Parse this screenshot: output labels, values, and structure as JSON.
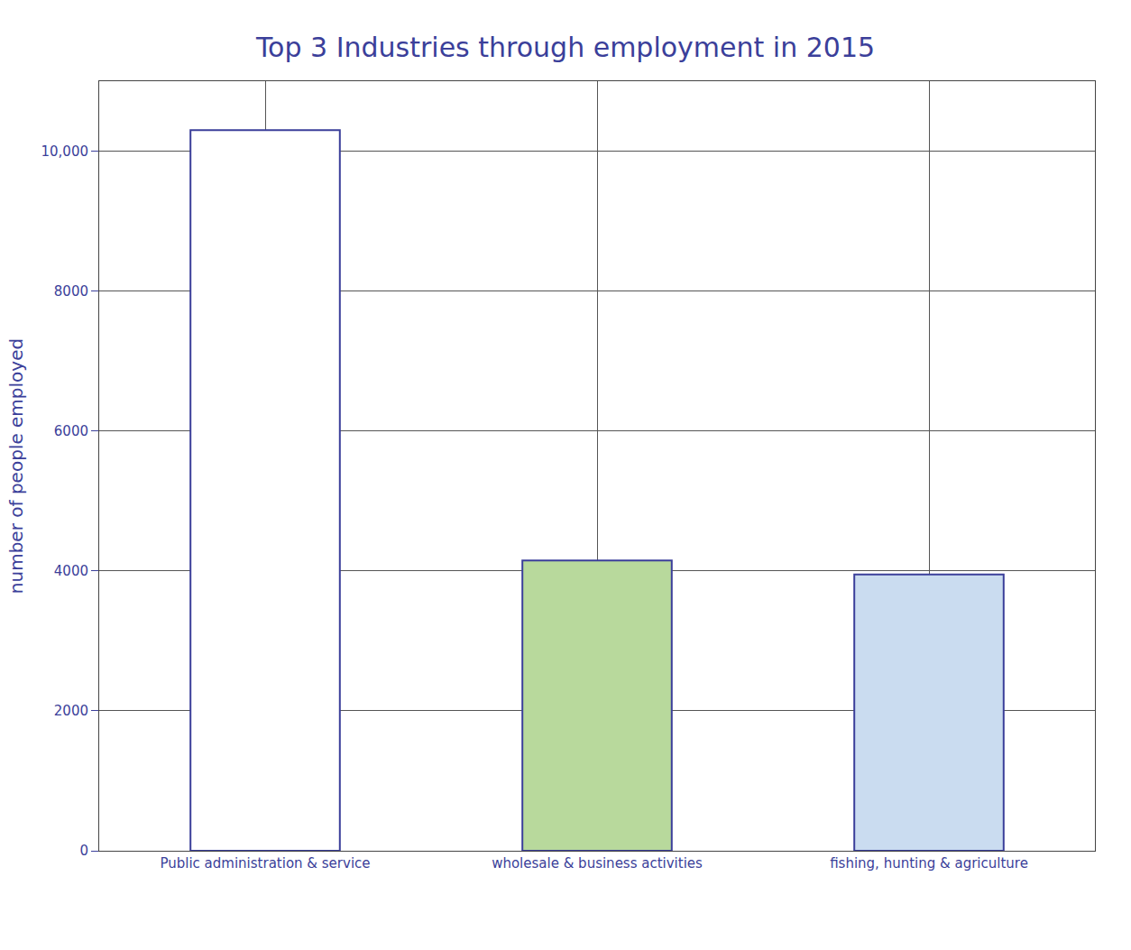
{
  "chart_data": {
    "type": "bar",
    "title": "Top 3 Industries through employment in 2015",
    "y_label": "number of people employed",
    "categories": [
      "Public administration & service",
      "wholesale & business activities",
      "fishing, hunting & agriculture"
    ],
    "values": [
      10300,
      4150,
      3950
    ],
    "colors": [
      "#ffffff",
      "#b8d99c",
      "#cadcf0"
    ],
    "ylim": [
      0,
      11000
    ],
    "yticks": [
      0,
      2000,
      4000,
      6000,
      8000,
      {
        "value": 10000,
        "label": "10,000"
      }
    ],
    "grid": true
  }
}
